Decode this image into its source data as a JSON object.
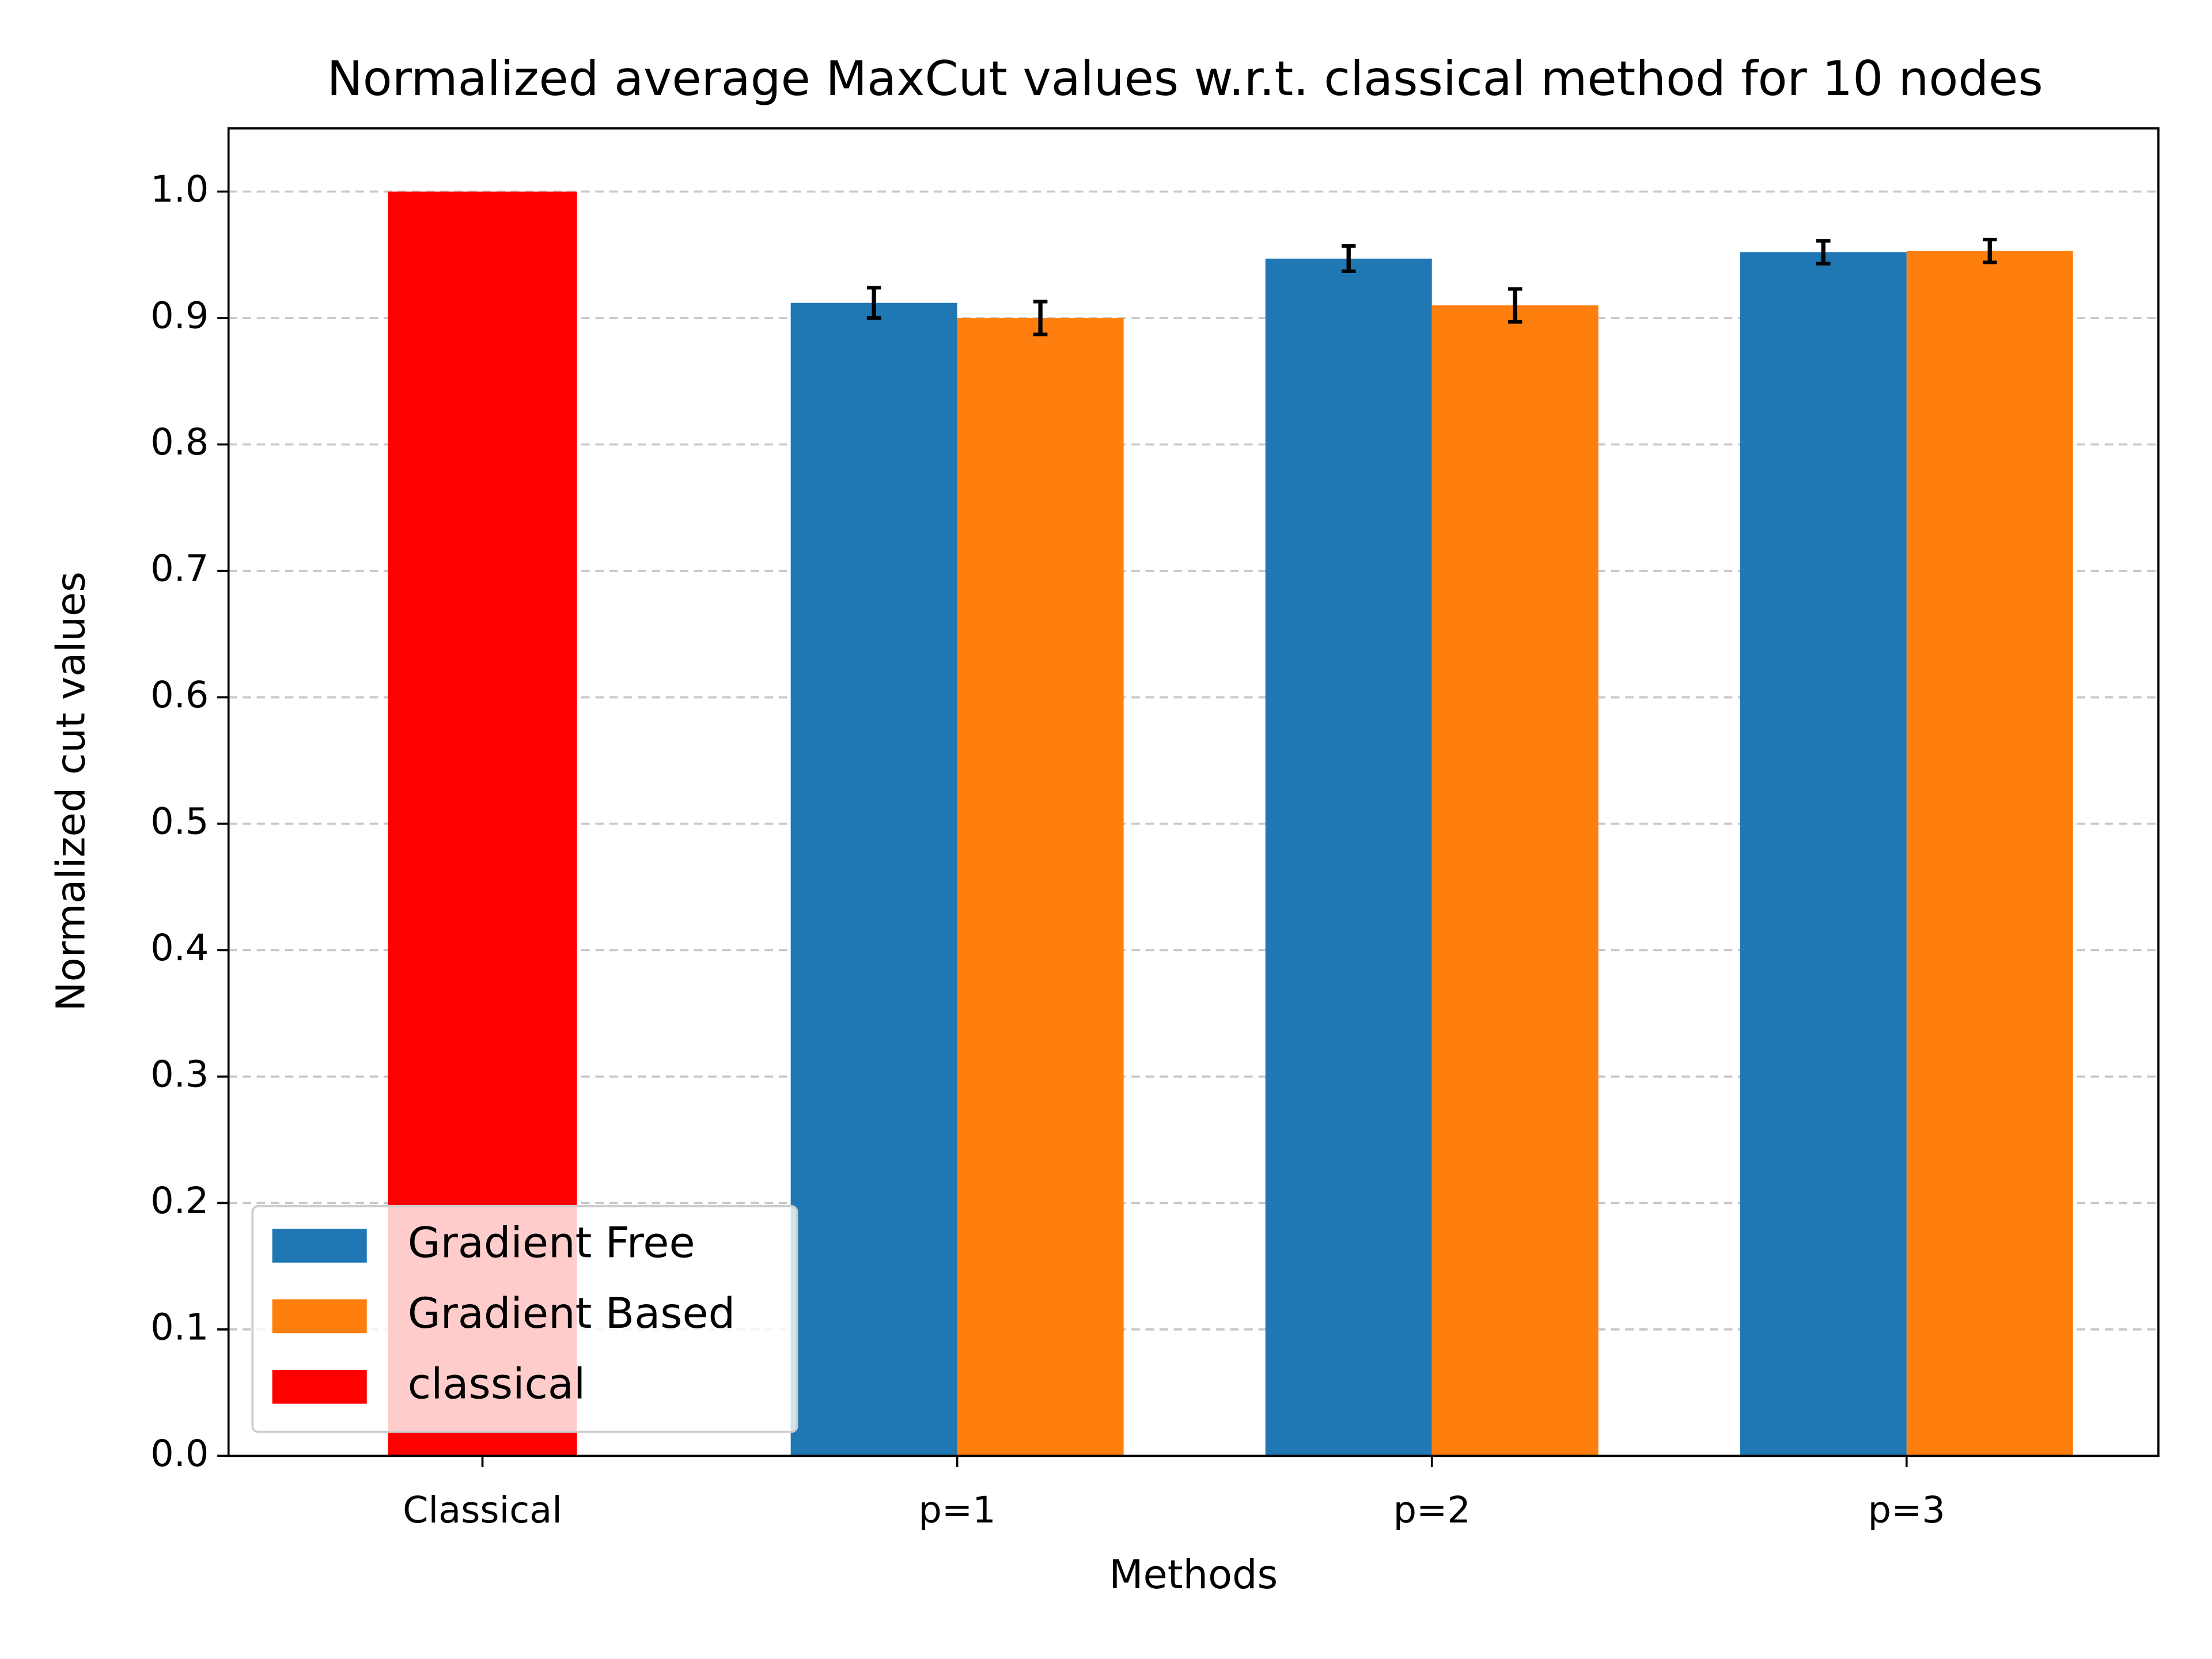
{
  "chart_data": {
    "type": "bar",
    "title": "Normalized average MaxCut values w.r.t. classical method for 10 nodes",
    "xlabel": "Methods",
    "ylabel": "Normalized cut values",
    "categories": [
      "Classical",
      "p=1",
      "p=2",
      "p=3"
    ],
    "series": [
      {
        "name": "Gradient Free",
        "color": "#1f77b4",
        "values": [
          null,
          0.912,
          0.947,
          0.952
        ],
        "errors": [
          null,
          0.012,
          0.01,
          0.009
        ]
      },
      {
        "name": "Gradient Based",
        "color": "#ff7f0e",
        "values": [
          null,
          0.9,
          0.91,
          0.953
        ],
        "errors": [
          null,
          0.013,
          0.013,
          0.009
        ]
      },
      {
        "name": "classical",
        "color": "#ff0000",
        "values": [
          1.0,
          null,
          null,
          null
        ]
      }
    ],
    "ylim": [
      0,
      1.05
    ],
    "yticks": [
      {
        "value": 0,
        "label": "0.0"
      },
      0.1,
      0.2,
      0.3,
      0.4,
      0.5,
      0.6,
      0.7,
      0.8,
      0.9,
      {
        "value": 1,
        "label": "1.0"
      }
    ],
    "grid": true,
    "legend": "lower left"
  }
}
